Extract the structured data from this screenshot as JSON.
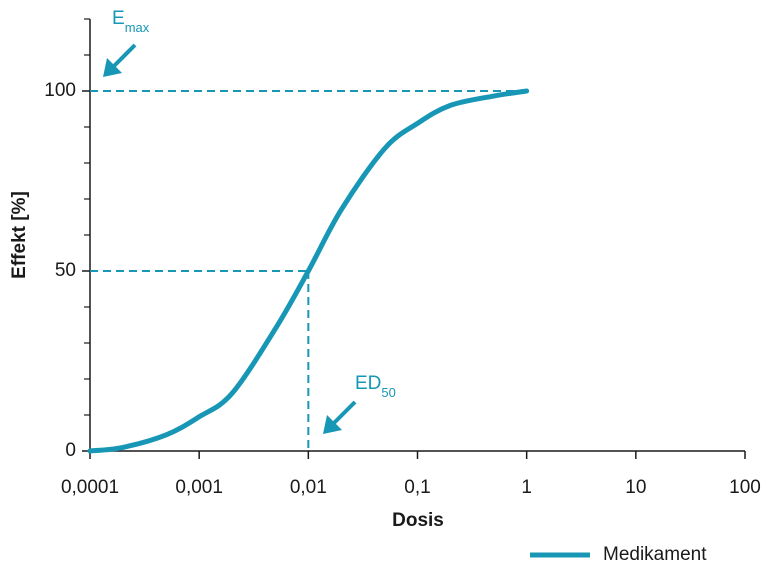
{
  "chart_data": {
    "type": "line",
    "y_label": "Effekt [%]",
    "x_label": "Dosis",
    "xscale": "log",
    "x": [
      0.0001,
      0.0002,
      0.0005,
      0.001,
      0.002,
      0.005,
      0.01,
      0.02,
      0.05,
      0.1,
      0.2,
      0.5,
      1
    ],
    "series": [
      {
        "name": "Medikament",
        "color": "#1797b5",
        "values": [
          0,
          1,
          4.5,
          9.5,
          16,
          34,
          50,
          67,
          84,
          91,
          96,
          98.6,
          100
        ]
      }
    ],
    "xlim": [
      0.0001,
      100
    ],
    "xticks": [
      {
        "value": 0.0001,
        "label": "0,0001"
      },
      {
        "value": 0.001,
        "label": "0,001"
      },
      {
        "value": 0.01,
        "label": "0,01"
      },
      {
        "value": 0.1,
        "label": "0,1"
      },
      1,
      10,
      100
    ],
    "ylim": [
      0,
      120
    ],
    "yticks": [
      0,
      50,
      100
    ],
    "yminor_ticks": [
      10,
      20,
      30,
      40,
      60,
      70,
      80,
      90,
      110,
      120
    ],
    "reference_lines": {
      "emax": 100,
      "ed50": 0.01,
      "ed50_effect": 50
    },
    "annotations": [
      {
        "text": "E",
        "sub": "max"
      },
      {
        "text": "ED",
        "sub": "50"
      }
    ],
    "legend": "bottom-right"
  }
}
